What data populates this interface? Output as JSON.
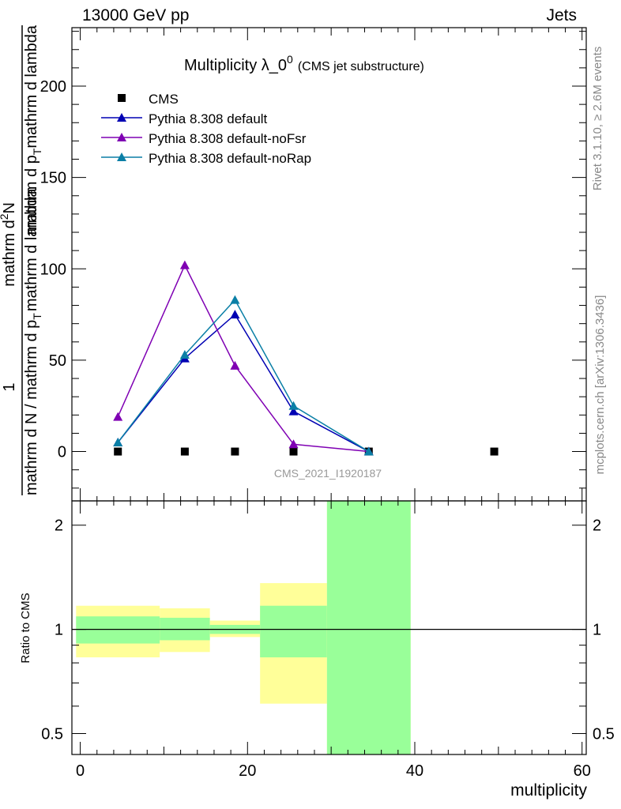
{
  "header": {
    "left": "13000 GeV pp",
    "right": "Jets"
  },
  "side_labels": {
    "rivet": "Rivet 3.1.10, ≥ 2.6M events",
    "mcplots": "mcplots.cern.ch [arXiv:1306.3436]"
  },
  "chart_data": [
    {
      "type": "line",
      "title": {
        "main": "Multiplicity λ_0",
        "sup": "0",
        "sub": "(CMS jet substructure)"
      },
      "watermark": "CMS_2021_I1920187",
      "ylabel": {
        "numerator": "1",
        "denominator": "mathrm d N / mathrm d p",
        "denominator_sub": "T",
        "denominator_rest": "mathrm d lambda",
        "top": "mathrm d",
        "top_sup": "2",
        "top_rest": "N",
        "mid": "mathrm d p",
        "mid_sub": "T",
        "mid_rest": "mathrm d lambda"
      },
      "xlim": [
        -1,
        60.5
      ],
      "ylim": [
        -27,
        232
      ],
      "yticks": [
        0,
        50,
        100,
        150,
        200
      ],
      "yticklabels": [
        "0",
        "50",
        "100",
        "150",
        "200"
      ],
      "legend_position": "top-left",
      "series": [
        {
          "name": "CMS",
          "color": "#000000",
          "marker": "square",
          "line": false,
          "x": [
            4.5,
            12.5,
            18.5,
            25.5,
            34.5,
            49.5
          ],
          "y": [
            0,
            0,
            0,
            0,
            0,
            0
          ]
        },
        {
          "name": "Pythia 8.308 default",
          "color": "#0000b3",
          "marker": "triangle",
          "line": true,
          "x": [
            4.5,
            12.5,
            18.5,
            25.5,
            34.5
          ],
          "y": [
            5,
            51,
            75,
            22,
            0
          ]
        },
        {
          "name": "Pythia 8.308 default-noFsr",
          "color": "#7f00b3",
          "marker": "triangle",
          "line": true,
          "x": [
            4.5,
            12.5,
            18.5,
            25.5,
            34.5
          ],
          "y": [
            19,
            102,
            47,
            4,
            0
          ]
        },
        {
          "name": "Pythia 8.308 default-noRap",
          "color": "#0a7fa6",
          "marker": "triangle",
          "line": true,
          "x": [
            4.5,
            12.5,
            18.5,
            25.5,
            34.5
          ],
          "y": [
            5,
            53,
            83,
            25,
            0
          ]
        }
      ]
    },
    {
      "type": "area",
      "ylabel": "Ratio to CMS",
      "xlabel": "multiplicity",
      "xlim": [
        -1,
        60.5
      ],
      "ylim": [
        0.435,
        2.35
      ],
      "log_y": true,
      "xticks": [
        0,
        20,
        40,
        60
      ],
      "xticklabels": [
        "0",
        "20",
        "40",
        "60"
      ],
      "yticks": [
        0.5,
        1,
        2
      ],
      "yticklabels": [
        "0.5",
        "1",
        "2"
      ],
      "reference_line": 1,
      "bands": [
        {
          "x0": -0.5,
          "x1": 9.5,
          "inner": [
            0.91,
            1.09
          ],
          "outer": [
            0.83,
            1.17
          ]
        },
        {
          "x0": 9.5,
          "x1": 15.5,
          "inner": [
            0.93,
            1.08
          ],
          "outer": [
            0.86,
            1.15
          ]
        },
        {
          "x0": 15.5,
          "x1": 21.5,
          "inner": [
            0.97,
            1.03
          ],
          "outer": [
            0.95,
            1.06
          ]
        },
        {
          "x0": 21.5,
          "x1": 29.5,
          "inner": [
            0.83,
            1.17
          ],
          "outer": [
            0.61,
            1.36
          ]
        },
        {
          "x0": 29.5,
          "x1": 39.5,
          "inner": [
            0.435,
            2.35
          ],
          "outer": [
            0.435,
            2.35
          ]
        }
      ],
      "colors": {
        "inner": "#99ff99",
        "outer": "#ffff99"
      }
    }
  ]
}
